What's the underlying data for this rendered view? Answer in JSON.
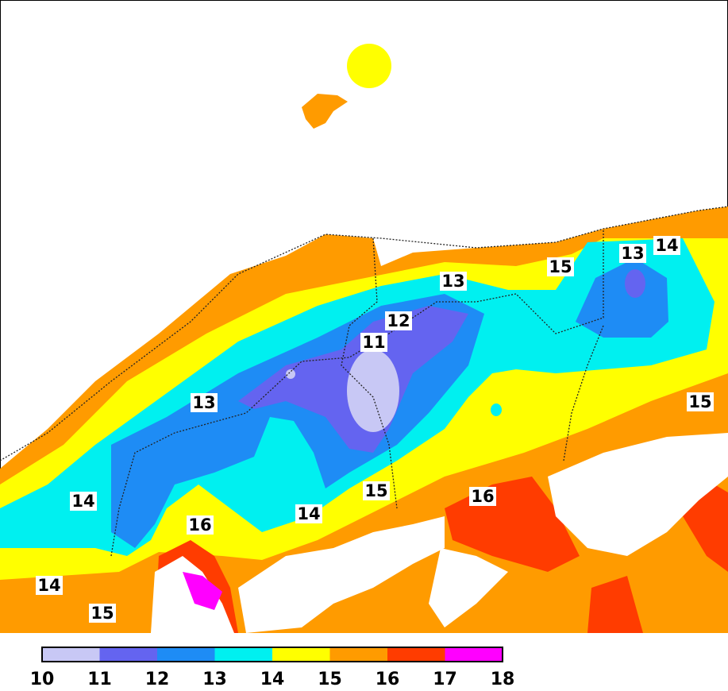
{
  "map": {
    "contour_labels": [
      13,
      14,
      13,
      15,
      12,
      11,
      13,
      15,
      14,
      15,
      16,
      14,
      16,
      14,
      15
    ]
  },
  "legend": {
    "ticks": [
      10,
      11,
      12,
      13,
      14,
      15,
      16,
      17,
      18
    ],
    "colors": [
      "#c8c8f5",
      "#6464f0",
      "#1e8cf5",
      "#00f0f0",
      "#ffff00",
      "#ff9b00",
      "#ff3c00",
      "#ff00ff"
    ]
  }
}
